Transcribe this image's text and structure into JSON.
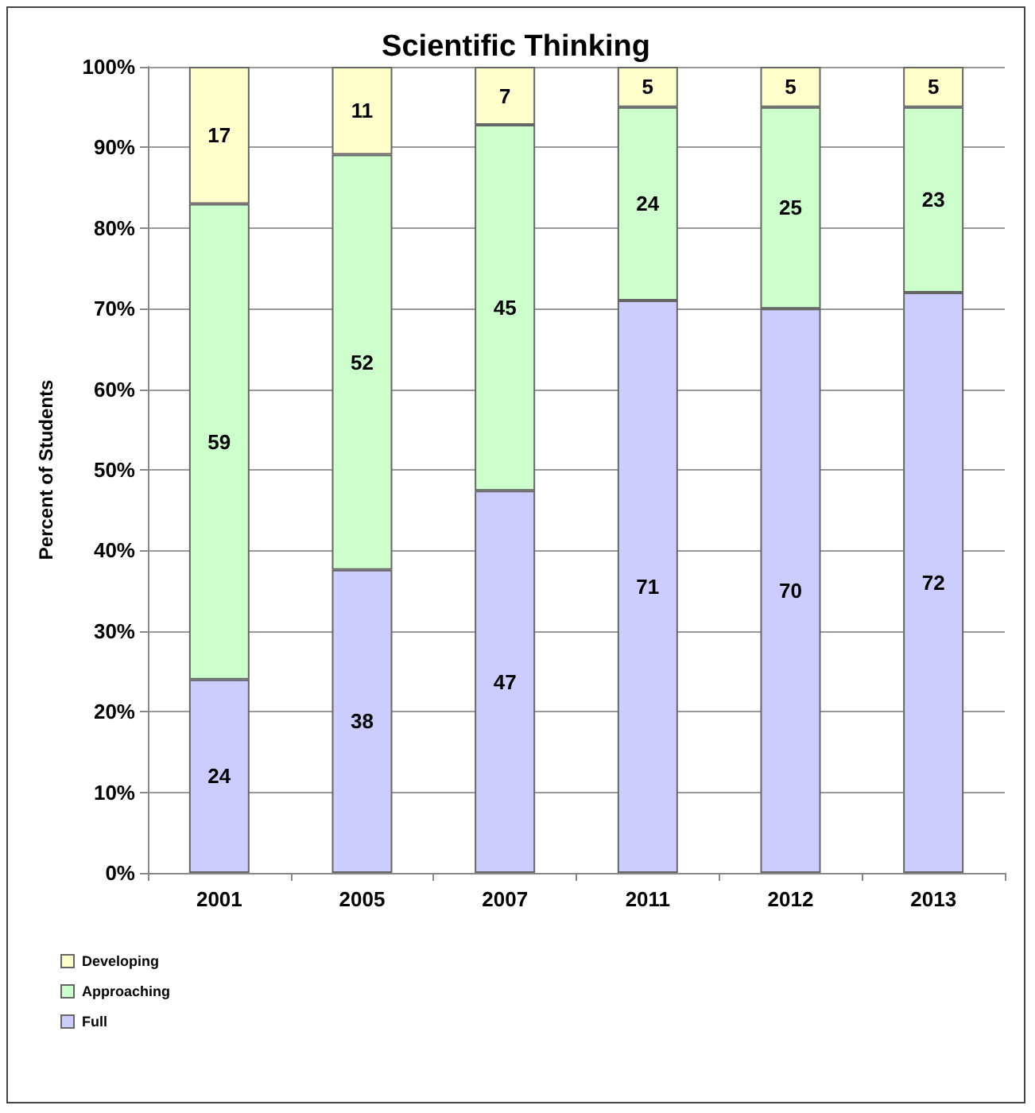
{
  "chart_data": {
    "type": "bar",
    "title": "Scientific Thinking",
    "ylabel": "Percent of Students",
    "categories": [
      "2001",
      "2005",
      "2007",
      "2011",
      "2012",
      "2013"
    ],
    "stacked": true,
    "series": [
      {
        "name": "Full",
        "color": "#ccccff",
        "values": [
          24,
          37.6,
          47.4,
          71,
          70,
          72
        ],
        "value_labels": [
          "24",
          "38",
          "47",
          "71",
          "70",
          "72"
        ]
      },
      {
        "name": "Approaching",
        "color": "#ccffcc",
        "values": [
          59,
          51.5,
          45.4,
          24,
          25,
          23
        ],
        "value_labels": [
          "59",
          "52",
          "45",
          "24",
          "25",
          "23"
        ]
      },
      {
        "name": "Developing",
        "color": "#ffffcc",
        "values": [
          17,
          10.9,
          7.2,
          5,
          5,
          5
        ],
        "value_labels": [
          "17",
          "11",
          "7",
          "5",
          "5",
          "5"
        ]
      }
    ],
    "ylim": [
      0,
      100
    ],
    "yticks": [
      {
        "value": 0,
        "label": "0%"
      },
      {
        "value": 10,
        "label": "10%"
      },
      {
        "value": 20,
        "label": "20%"
      },
      {
        "value": 30,
        "label": "30%"
      },
      {
        "value": 40,
        "label": "40%"
      },
      {
        "value": 50,
        "label": "50%"
      },
      {
        "value": 60,
        "label": "60%"
      },
      {
        "value": 70,
        "label": "70%"
      },
      {
        "value": 80,
        "label": "80%"
      },
      {
        "value": 90,
        "label": "90%"
      },
      {
        "value": 100,
        "label": "100%"
      }
    ],
    "grid": "y",
    "legend": "bottom left"
  }
}
